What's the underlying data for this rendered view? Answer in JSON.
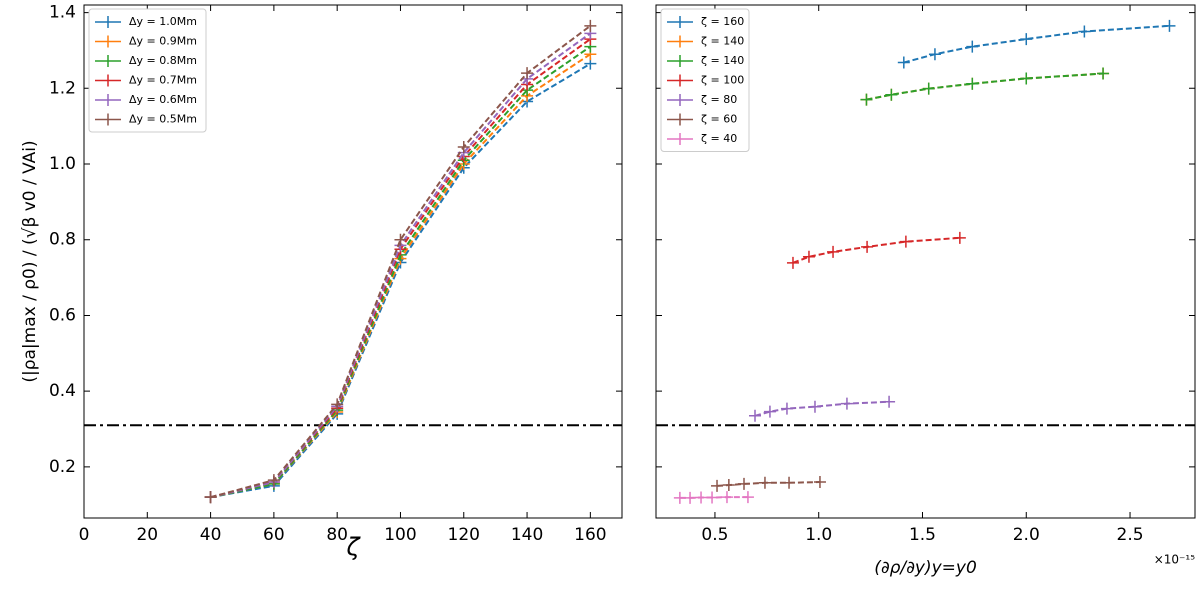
{
  "chart_data": [
    {
      "type": "line",
      "xlabel": "ζ",
      "ylabel": "(|ρa|max / ρ0) / (√β v0 / VAi)",
      "x": [
        40,
        60,
        80,
        100,
        120,
        140,
        160
      ],
      "series": [
        {
          "name": "Δy = 1.0Mm",
          "color": "#1f77b4",
          "values": [
            0.12,
            0.15,
            0.34,
            0.74,
            0.99,
            1.165,
            1.265
          ]
        },
        {
          "name": "Δy = 0.9Mm",
          "color": "#ff7f0e",
          "values": [
            0.12,
            0.155,
            0.345,
            0.75,
            1.0,
            1.18,
            1.29
          ]
        },
        {
          "name": "Δy = 0.8Mm",
          "color": "#2ca02c",
          "values": [
            0.12,
            0.155,
            0.35,
            0.76,
            1.01,
            1.195,
            1.31
          ]
        },
        {
          "name": "Δy = 0.7Mm",
          "color": "#d62728",
          "values": [
            0.12,
            0.16,
            0.355,
            0.775,
            1.02,
            1.21,
            1.33
          ]
        },
        {
          "name": "Δy = 0.6Mm",
          "color": "#9467bd",
          "values": [
            0.12,
            0.16,
            0.36,
            0.785,
            1.03,
            1.225,
            1.345
          ]
        },
        {
          "name": "Δy = 0.5Mm",
          "color": "#8c564b",
          "values": [
            0.12,
            0.165,
            0.365,
            0.8,
            1.045,
            1.24,
            1.365
          ]
        }
      ],
      "xlim": [
        0,
        170
      ],
      "xticks": [
        0,
        20,
        40,
        60,
        80,
        100,
        120,
        140,
        160
      ],
      "ylim": [
        0.065,
        1.42
      ],
      "yticks": [
        0.2,
        0.4,
        0.6,
        0.8,
        {
          "value": 1,
          "label": "1.0"
        },
        1.2,
        1.4
      ],
      "hline": 0.31,
      "legend": "upper left"
    },
    {
      "type": "line",
      "xlabel": "(∂ρ/∂y)y=y0",
      "offset_label": "×10⁻¹⁵",
      "series": [
        {
          "name": "ζ = 160",
          "color": "#1f77b4",
          "x": [
            1.41,
            1.56,
            1.74,
            2.0,
            2.28,
            2.69
          ],
          "values": [
            1.268,
            1.29,
            1.31,
            1.33,
            1.35,
            1.365
          ]
        },
        {
          "name": "ζ = 140",
          "color": "#ff7f0e",
          "x": [
            1.23,
            1.35,
            1.53,
            1.74,
            2.0,
            2.37
          ],
          "values": [
            1.17,
            1.183,
            1.199,
            1.212,
            1.226,
            1.239
          ]
        },
        {
          "name": "ζ = 140",
          "color": "#2ca02c",
          "x": [
            1.23,
            1.35,
            1.53,
            1.74,
            2.0,
            2.37
          ],
          "values": [
            1.17,
            1.183,
            1.199,
            1.212,
            1.226,
            1.239
          ]
        },
        {
          "name": "ζ = 100",
          "color": "#d62728",
          "x": [
            0.876,
            0.953,
            1.069,
            1.233,
            1.42,
            1.68
          ],
          "values": [
            0.739,
            0.755,
            0.768,
            0.781,
            0.795,
            0.805
          ]
        },
        {
          "name": "ζ = 80",
          "color": "#9467bd",
          "x": [
            0.693,
            0.765,
            0.847,
            0.982,
            1.136,
            1.339
          ],
          "values": [
            0.335,
            0.346,
            0.354,
            0.359,
            0.367,
            0.372
          ]
        },
        {
          "name": "ζ = 60",
          "color": "#8c564b",
          "x": [
            0.51,
            0.567,
            0.64,
            0.741,
            0.857,
            1.006
          ],
          "values": [
            0.15,
            0.152,
            0.155,
            0.158,
            0.158,
            0.16
          ]
        },
        {
          "name": "ζ = 40",
          "color": "#e377c2",
          "x": [
            0.331,
            0.38,
            0.433,
            0.486,
            0.558,
            0.659
          ],
          "values": [
            0.118,
            0.118,
            0.119,
            0.119,
            0.12,
            0.12
          ]
        }
      ],
      "xlim": [
        0.216,
        2.813
      ],
      "xticks": [
        0.5,
        {
          "value": 1,
          "label": "1.0"
        },
        1.5,
        {
          "value": 2,
          "label": "2.0"
        },
        2.5
      ],
      "ylim": [
        0.065,
        1.42
      ],
      "yticks": [
        0.2,
        0.4,
        0.6,
        0.8,
        1,
        1.2,
        1.4
      ],
      "hline": 0.31,
      "legend": "upper left"
    }
  ]
}
